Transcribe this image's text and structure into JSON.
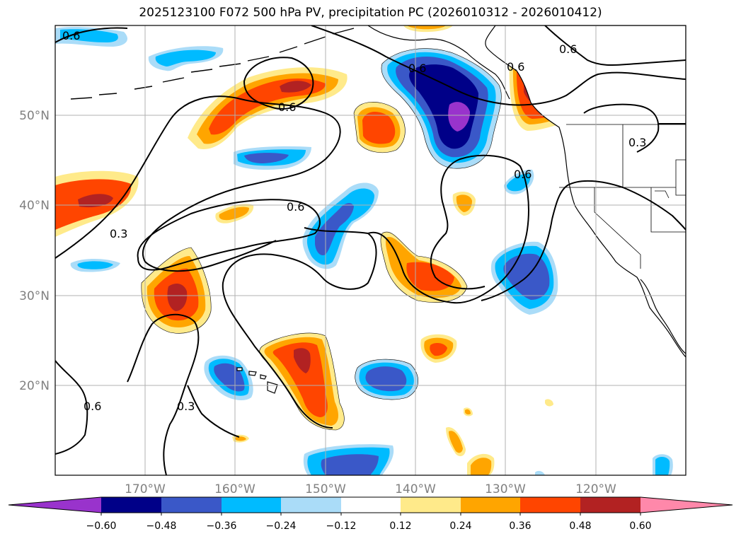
{
  "title": "2025123100 F072 500 hPa PV, precipitation PC (2026010312 - 2026010412)",
  "map": {
    "lon_range": [
      -180,
      -110
    ],
    "lat_range": [
      10,
      60
    ],
    "lat_ticks": [
      {
        "value": 20,
        "label": "20°N"
      },
      {
        "value": 30,
        "label": "30°N"
      },
      {
        "value": 40,
        "label": "40°N"
      },
      {
        "value": 50,
        "label": "50°N"
      }
    ],
    "lon_ticks": [
      {
        "value": -170,
        "label": "170°W"
      },
      {
        "value": -160,
        "label": "160°W"
      },
      {
        "value": -150,
        "label": "150°W"
      },
      {
        "value": -140,
        "label": "140°W"
      },
      {
        "value": -130,
        "label": "130°W"
      },
      {
        "value": -120,
        "label": "120°W"
      }
    ],
    "contour_labels": [
      "0.6",
      "0.6",
      "0.6",
      "0.6",
      "0.6",
      "0.6",
      "0.3",
      "0.3",
      "0.3",
      "0.6",
      "0.6"
    ]
  },
  "colorbar": {
    "levels": [
      "−0.60",
      "−0.48",
      "−0.36",
      "−0.24",
      "−0.12",
      "0.12",
      "0.24",
      "0.36",
      "0.48",
      "0.60"
    ],
    "colors": [
      "#9933cc",
      "#000088",
      "#3a58c8",
      "#00bbff",
      "#aadcf8",
      "#ffffff",
      "#ffea8a",
      "#ffa500",
      "#ff4500",
      "#b22222",
      "#ff88aa"
    ]
  },
  "palette": {
    "neg_strong": "#000088",
    "neg_mid": "#3a58c8",
    "neg_light": "#00bbff",
    "neg_pale": "#aadcf8",
    "neg_extreme": "#9933cc",
    "pos_pale": "#ffea8a",
    "pos_light": "#ffa500",
    "pos_mid": "#ff4500",
    "pos_strong": "#b22222",
    "pos_extreme": "#ff88aa"
  }
}
